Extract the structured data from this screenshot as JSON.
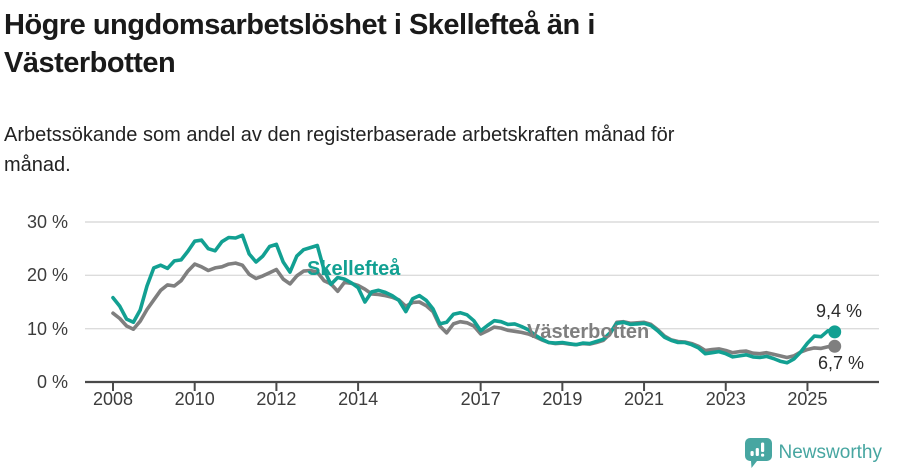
{
  "header": {
    "title_line1": "Högre ungdomsarbetslöshet i Skellefteå än i",
    "title_line2": "Västerbotten",
    "subtitle_line1": "Arbetssökande som andel av den registerbaserade arbetskraften månad för",
    "subtitle_line2": "månad."
  },
  "chart_data": {
    "type": "line",
    "unit": "%",
    "grid": "horizontal",
    "ylim": [
      0,
      32
    ],
    "y_ticks": [
      0,
      10,
      20,
      30
    ],
    "y_tick_labels": [
      "0 %",
      "10 %",
      "20 %",
      "30 %"
    ],
    "x_tick_years": [
      2008,
      2010,
      2012,
      2014,
      2017,
      2019,
      2021,
      2023,
      2025
    ],
    "x_start_year": 2008,
    "step_months": 2,
    "axis_color": "#4a4a4a",
    "grid_color": "#dcdcdc",
    "series": [
      {
        "name": "Västerbotten",
        "color": "#7f7f7f",
        "end_label": "6,7 %",
        "end_value": 6.7,
        "values": [
          12.9,
          11.9,
          10.5,
          9.9,
          11.4,
          13.6,
          15.4,
          17.2,
          18.2,
          18.0,
          19.0,
          20.8,
          22.1,
          21.6,
          20.9,
          21.4,
          21.6,
          22.1,
          22.3,
          21.9,
          20.2,
          19.4,
          19.9,
          20.5,
          21.1,
          19.3,
          18.4,
          19.9,
          20.8,
          20.9,
          20.6,
          19.0,
          18.4,
          17.0,
          18.7,
          18.5,
          18.1,
          17.4,
          16.5,
          16.4,
          16.2,
          15.9,
          15.4,
          14.2,
          14.9,
          15.0,
          14.3,
          13.2,
          10.5,
          9.2,
          10.9,
          11.3,
          11.1,
          10.5,
          9.0,
          9.6,
          10.3,
          10.1,
          9.7,
          9.5,
          9.3,
          9.0,
          8.5,
          7.9,
          7.4,
          7.2,
          7.3,
          7.1,
          7.0,
          7.2,
          7.1,
          7.4,
          7.8,
          9.0,
          11.2,
          11.3,
          11.0,
          11.1,
          11.2,
          10.8,
          9.8,
          8.6,
          7.9,
          7.6,
          7.5,
          7.2,
          6.7,
          5.9,
          6.1,
          6.2,
          5.9,
          5.5,
          5.7,
          5.8,
          5.4,
          5.3,
          5.5,
          5.2,
          4.9,
          4.6,
          4.9,
          5.6,
          6.1,
          6.4,
          6.3,
          6.6,
          6.7
        ]
      },
      {
        "name": "Skellefteå",
        "color": "#12a092",
        "end_label": "9,4 %",
        "end_value": 9.4,
        "values": [
          15.8,
          14.2,
          11.8,
          11.2,
          13.5,
          18.0,
          21.4,
          21.9,
          21.3,
          22.7,
          22.9,
          24.5,
          26.4,
          26.6,
          25.0,
          24.6,
          26.3,
          27.1,
          27.0,
          27.5,
          24.0,
          22.5,
          23.6,
          25.4,
          25.8,
          22.5,
          20.6,
          23.6,
          24.8,
          25.2,
          25.6,
          21.0,
          18.3,
          19.6,
          19.3,
          18.6,
          17.7,
          15.0,
          16.9,
          17.2,
          16.8,
          16.2,
          15.3,
          13.2,
          15.6,
          16.2,
          15.3,
          13.7,
          10.9,
          11.2,
          12.7,
          13.0,
          12.6,
          11.5,
          9.6,
          10.6,
          11.5,
          11.3,
          10.8,
          10.9,
          10.4,
          9.8,
          8.8,
          8.0,
          7.4,
          7.3,
          7.4,
          7.2,
          7.0,
          7.3,
          7.2,
          7.6,
          8.0,
          9.2,
          11.0,
          11.2,
          10.8,
          10.9,
          11.0,
          10.6,
          9.6,
          8.4,
          7.8,
          7.4,
          7.4,
          7.0,
          6.4,
          5.3,
          5.5,
          5.7,
          5.3,
          4.7,
          4.9,
          5.1,
          4.7,
          4.6,
          4.8,
          4.4,
          3.9,
          3.6,
          4.3,
          5.6,
          7.3,
          8.6,
          8.5,
          9.6,
          9.4
        ]
      }
    ]
  },
  "branding": {
    "logo_text": "Newsworthy",
    "logo_color": "#47a6a1"
  }
}
